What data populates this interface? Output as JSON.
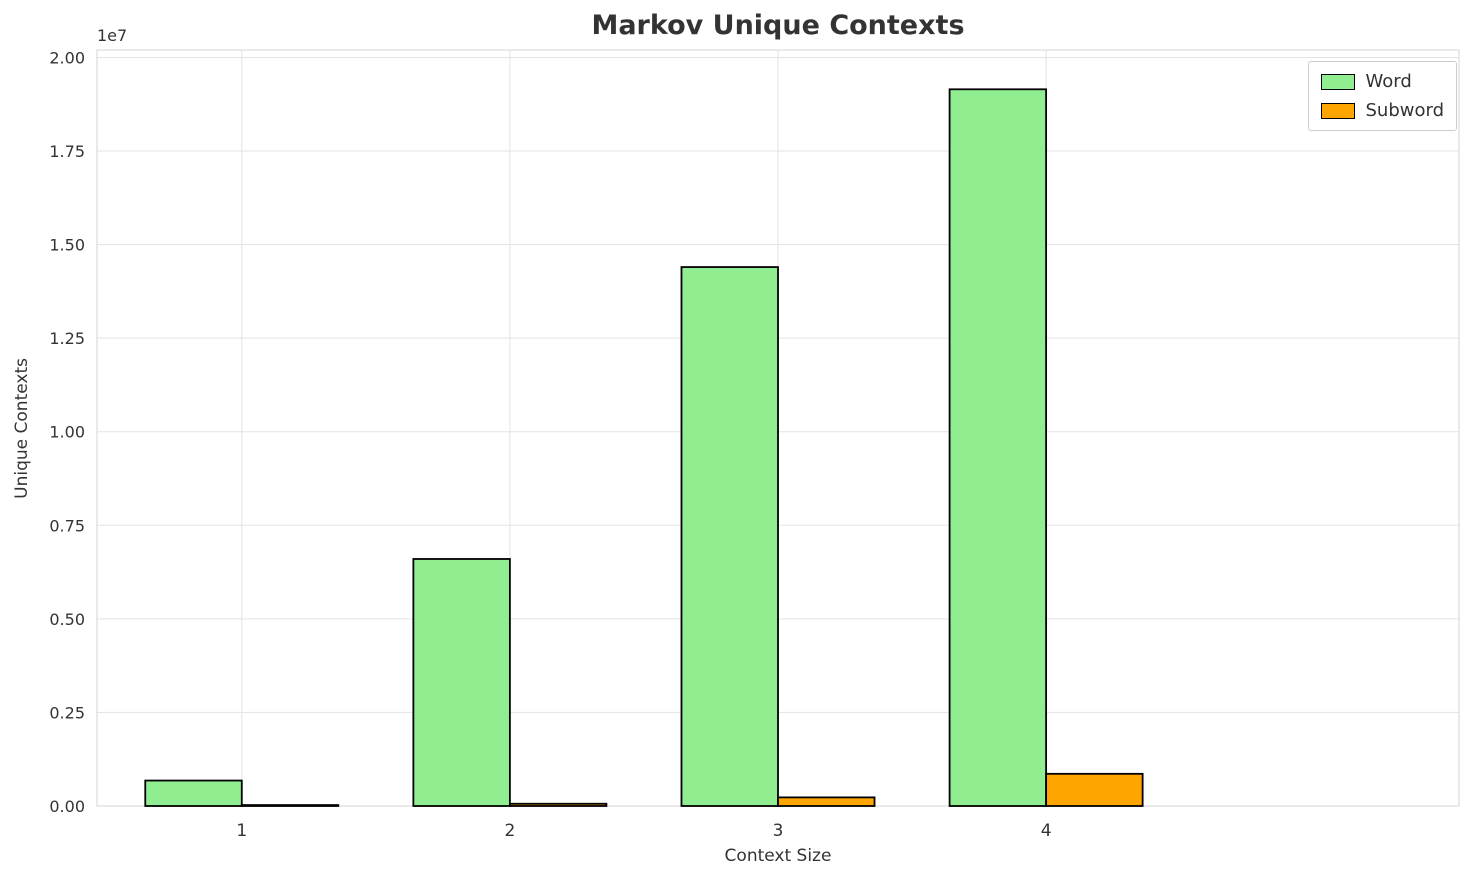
{
  "chart_data": {
    "type": "bar",
    "title": "Markov Unique Contexts",
    "xlabel": "Context Size",
    "ylabel": "Unique Contexts",
    "offset_text": "1e7",
    "categories": [
      "1",
      "2",
      "3",
      "4"
    ],
    "series": [
      {
        "name": "Word",
        "color": "#90EE90",
        "values": [
          680000,
          6600000,
          14400000,
          19150000
        ]
      },
      {
        "name": "Subword",
        "color": "#FFA500",
        "values": [
          25000,
          60000,
          230000,
          860000
        ]
      }
    ],
    "bar_edge_color": "#000000",
    "ylim": [
      0,
      20200000
    ],
    "yticks": [
      0,
      2500000,
      5000000,
      7500000,
      10000000,
      12500000,
      15000000,
      17500000,
      20000000
    ],
    "ytick_labels": [
      "0.00",
      "0.25",
      "0.50",
      "0.75",
      "1.00",
      "1.25",
      "1.50",
      "1.75",
      "2.00"
    ],
    "grid": true,
    "legend_position": "upper right"
  }
}
